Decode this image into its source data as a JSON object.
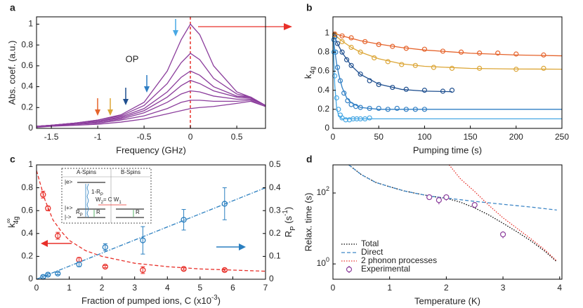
{
  "chart_data": [
    {
      "type": "line",
      "panel": "a",
      "annotation": "OP",
      "xlabel": "Frequency (GHz)",
      "ylabel": "Abs. coef. (a.u.)",
      "color": "#8b3d9c",
      "x": [
        -1.66,
        -1.5,
        -1.25,
        -1,
        -0.75,
        -0.5,
        -0.25,
        -0.1,
        0,
        0.1,
        0.25,
        0.5,
        0.65,
        0.81
      ],
      "series": [
        {
          "values": [
            0.02,
            0.03,
            0.05,
            0.08,
            0.13,
            0.25,
            0.55,
            0.85,
            1.0,
            0.9,
            0.6,
            0.35,
            0.3,
            0.22
          ]
        },
        {
          "values": [
            0.02,
            0.03,
            0.05,
            0.08,
            0.12,
            0.22,
            0.43,
            0.63,
            0.72,
            0.66,
            0.48,
            0.33,
            0.3,
            0.22
          ]
        },
        {
          "values": [
            0.02,
            0.03,
            0.05,
            0.07,
            0.11,
            0.19,
            0.35,
            0.49,
            0.55,
            0.51,
            0.4,
            0.31,
            0.3,
            0.22
          ]
        },
        {
          "values": [
            0.02,
            0.03,
            0.05,
            0.07,
            0.1,
            0.17,
            0.3,
            0.41,
            0.46,
            0.43,
            0.36,
            0.3,
            0.29,
            0.22
          ]
        },
        {
          "values": [
            0.02,
            0.03,
            0.04,
            0.06,
            0.09,
            0.15,
            0.25,
            0.33,
            0.36,
            0.35,
            0.31,
            0.28,
            0.28,
            0.22
          ]
        },
        {
          "values": [
            0.02,
            0.02,
            0.04,
            0.05,
            0.08,
            0.12,
            0.19,
            0.25,
            0.27,
            0.27,
            0.26,
            0.26,
            0.27,
            0.21
          ]
        },
        {
          "values": [
            0.01,
            0.02,
            0.03,
            0.04,
            0.06,
            0.09,
            0.14,
            0.17,
            0.19,
            0.2,
            0.21,
            0.24,
            0.26,
            0.21
          ]
        }
      ],
      "xlim": [
        -1.66,
        0.81
      ],
      "ylim": [
        0,
        1.07
      ],
      "xticks": [
        -1.5,
        -1,
        -0.5,
        0,
        0.5
      ],
      "yticks": [
        0,
        0.2,
        0.4,
        0.6,
        0.8,
        1
      ]
    },
    {
      "type": "line",
      "panel": "b",
      "xlabel": "Pumping time (s)",
      "ylabel": "k",
      "ylabel_sub": "4g",
      "series": [
        {
          "color": "#e5632b",
          "x": [
            0,
            5,
            10,
            20,
            30,
            50,
            75,
            100,
            150,
            200,
            250
          ],
          "values": [
            1.0,
            0.985,
            0.97,
            0.945,
            0.92,
            0.884,
            0.848,
            0.822,
            0.788,
            0.77,
            0.761
          ]
        },
        {
          "color": "#dca637",
          "x": [
            0,
            5,
            10,
            20,
            30,
            50,
            75,
            100,
            150,
            200,
            250
          ],
          "values": [
            1.0,
            0.955,
            0.916,
            0.85,
            0.8,
            0.73,
            0.677,
            0.651,
            0.629,
            0.623,
            0.621
          ]
        },
        {
          "color": "#1f4f8f",
          "x": [
            0,
            5,
            10,
            20,
            30,
            50,
            75,
            100,
            130
          ],
          "values": [
            1.0,
            0.888,
            0.796,
            0.659,
            0.567,
            0.464,
            0.409,
            0.391,
            0.385
          ]
        },
        {
          "color": "#2f7ec4",
          "x": [
            0,
            2,
            4,
            6,
            10,
            15,
            20,
            30,
            50,
            250
          ],
          "values": [
            1.0,
            0.82,
            0.68,
            0.58,
            0.43,
            0.32,
            0.27,
            0.22,
            0.2,
            0.2
          ]
        },
        {
          "color": "#48a8e4",
          "x": [
            0,
            2,
            4,
            6,
            10,
            20,
            250
          ],
          "values": [
            1.0,
            0.45,
            0.22,
            0.14,
            0.1,
            0.1,
            0.1
          ]
        }
      ],
      "points": [
        {
          "color": "#e5632b",
          "x": [
            2,
            10,
            20,
            35,
            50,
            65,
            80,
            100,
            120,
            140,
            160,
            180,
            200,
            230
          ],
          "values": [
            0.99,
            0.97,
            0.95,
            0.91,
            0.88,
            0.86,
            0.84,
            0.83,
            0.81,
            0.8,
            0.79,
            0.79,
            0.78,
            0.77
          ]
        },
        {
          "color": "#dca637",
          "x": [
            2,
            10,
            20,
            30,
            45,
            60,
            75,
            90,
            110,
            130,
            160,
            200,
            230
          ],
          "values": [
            0.98,
            0.91,
            0.85,
            0.8,
            0.74,
            0.7,
            0.67,
            0.66,
            0.64,
            0.63,
            0.63,
            0.62,
            0.63
          ]
        },
        {
          "color": "#1f4f8f",
          "x": [
            2,
            5,
            10,
            15,
            20,
            30,
            40,
            50,
            65,
            80,
            100,
            120,
            130
          ],
          "values": [
            0.96,
            0.89,
            0.8,
            0.72,
            0.66,
            0.57,
            0.5,
            0.46,
            0.43,
            0.41,
            0.4,
            0.39,
            0.4
          ]
        },
        {
          "color": "#2f7ec4",
          "x": [
            1,
            3,
            5,
            8,
            12,
            16,
            20,
            25,
            30,
            40,
            50,
            60,
            70,
            80,
            90,
            100
          ],
          "values": [
            0.93,
            0.8,
            0.64,
            0.5,
            0.37,
            0.29,
            0.25,
            0.23,
            0.22,
            0.21,
            0.21,
            0.2,
            0.21,
            0.2,
            0.2,
            0.2
          ]
        },
        {
          "color": "#48a8e4",
          "x": [
            1,
            2,
            4,
            6,
            8,
            10,
            14,
            18,
            22,
            26,
            30,
            35,
            40
          ],
          "values": [
            0.8,
            0.55,
            0.32,
            0.2,
            0.14,
            0.11,
            0.09,
            0.09,
            0.1,
            0.1,
            0.1,
            0.1,
            0.11
          ]
        }
      ],
      "xlim": [
        0,
        250
      ],
      "ylim": [
        0,
        1.17
      ],
      "xticks": [
        0,
        50,
        100,
        150,
        200,
        250
      ],
      "yticks": [
        0,
        0.2,
        0.4,
        0.6,
        0.8,
        1
      ]
    },
    {
      "type": "scatter",
      "panel": "c",
      "xlabel": [
        "Fraction of pumped ions, C (x10",
        "-3",
        ")"
      ],
      "ylabel": "k",
      "ylabel_sup": "∞",
      "ylabel_sub": "4g",
      "y2label": [
        "R",
        "P",
        " (s",
        "-1",
        ")"
      ],
      "series": [
        {
          "color": "#e8302a",
          "axis": "y",
          "x": [
            0.2,
            0.35,
            0.65,
            1.3,
            2.1,
            3.25,
            4.5,
            5.75
          ],
          "values": [
            0.74,
            0.62,
            0.38,
            0.17,
            0.11,
            0.08,
            0.09,
            0.08
          ],
          "errors": [
            0.03,
            0.02,
            0.03,
            0.02,
            0.01,
            0.03,
            0.01,
            0.01
          ]
        },
        {
          "color": "#2a7fc0",
          "axis": "y2",
          "x": [
            0.2,
            0.35,
            0.65,
            1.3,
            2.1,
            3.25,
            4.5,
            5.75
          ],
          "values": [
            0.01,
            0.02,
            0.025,
            0.065,
            0.14,
            0.17,
            0.26,
            0.33
          ],
          "errors": [
            0.005,
            0.005,
            0.005,
            0.01,
            0.015,
            0.06,
            0.045,
            0.07
          ]
        }
      ],
      "fits": [
        {
          "color": "#e8302a",
          "axis": "y",
          "linestyle": "dashed",
          "x": [
            0,
            0.25,
            0.5,
            0.75,
            1,
            1.5,
            2,
            3,
            4,
            5,
            6,
            7
          ],
          "values": [
            0.95,
            0.7,
            0.52,
            0.42,
            0.34,
            0.25,
            0.2,
            0.14,
            0.11,
            0.09,
            0.08,
            0.07
          ]
        },
        {
          "color": "#2a7fc0",
          "axis": "y2",
          "linestyle": "dashdot",
          "x": [
            0,
            7
          ],
          "values": [
            0,
            0.4
          ]
        }
      ],
      "inset": {
        "a_spins": "A-Spins",
        "b_spins": "B-Spins",
        "excited": "|e>",
        "plus": "|+>",
        "minus": "|->",
        "decay": [
          "1-R",
          "P"
        ],
        "transfer": [
          "W",
          "2",
          "= C W",
          "1"
        ],
        "pump": [
          "R",
          "P"
        ],
        "relax_a": "R",
        "relax_b": "R"
      },
      "xlim": [
        0,
        7
      ],
      "ylim": [
        0,
        1
      ],
      "y2lim": [
        0,
        0.5
      ],
      "xticks": [
        0,
        1,
        2,
        3,
        4,
        5,
        6,
        7
      ],
      "yticks": [
        0,
        0.2,
        0.4,
        0.6,
        0.8,
        1
      ],
      "y2ticks": [
        0,
        0.1,
        0.2,
        0.3,
        0.4,
        0.5
      ]
    },
    {
      "type": "line",
      "panel": "d",
      "xlabel": "Temperature (K)",
      "ylabel": "Relax. time (s)",
      "log_y": true,
      "legend": "lower left",
      "series": [
        {
          "name": "Total",
          "color": "#000000",
          "linestyle": "dotted",
          "x": [
            0.28,
            0.5,
            0.75,
            1,
            1.25,
            1.5,
            1.75,
            2,
            2.25,
            2.5,
            2.75,
            3,
            3.25,
            3.5,
            3.75,
            3.95
          ],
          "values": [
            620,
            330,
            200,
            150,
            115,
            95,
            80,
            71,
            55,
            38,
            24,
            14,
            8,
            4.4,
            2.2,
            1.15
          ]
        },
        {
          "name": "Direct",
          "color": "#3d86c6",
          "linestyle": "dashed",
          "x": [
            0.28,
            0.5,
            0.75,
            1,
            1.25,
            1.5,
            1.75,
            2,
            2.5,
            3,
            3.5,
            3.95
          ],
          "values": [
            620,
            330,
            200,
            150,
            115,
            95,
            80,
            72,
            58,
            48,
            40,
            33
          ]
        },
        {
          "name": "2 phonon processes",
          "color": "#e8302a",
          "linestyle": "dotted",
          "x": [
            2.05,
            2.25,
            2.5,
            2.75,
            3,
            3.25,
            3.5,
            3.75,
            3.95
          ],
          "values": [
            620,
            250,
            110,
            45,
            20,
            10,
            5,
            2.4,
            1.2
          ]
        }
      ],
      "points": {
        "name": "Experimental",
        "color": "#8b3d9c",
        "x": [
          1.7,
          1.87,
          2.0,
          2.5,
          3.0
        ],
        "values": [
          76,
          63,
          76,
          46,
          6.8
        ],
        "errors": [
          8,
          15,
          15,
          8,
          1.5
        ]
      },
      "xlim": [
        0,
        4.04
      ],
      "ylim": [
        0.37,
        620
      ],
      "xticks": [
        0,
        1,
        2,
        3,
        4
      ],
      "yticks": [
        {
          "value": 1,
          "label": "10",
          "sup": "0"
        },
        {
          "value": 100,
          "label": "10",
          "sup": "2"
        }
      ]
    }
  ]
}
